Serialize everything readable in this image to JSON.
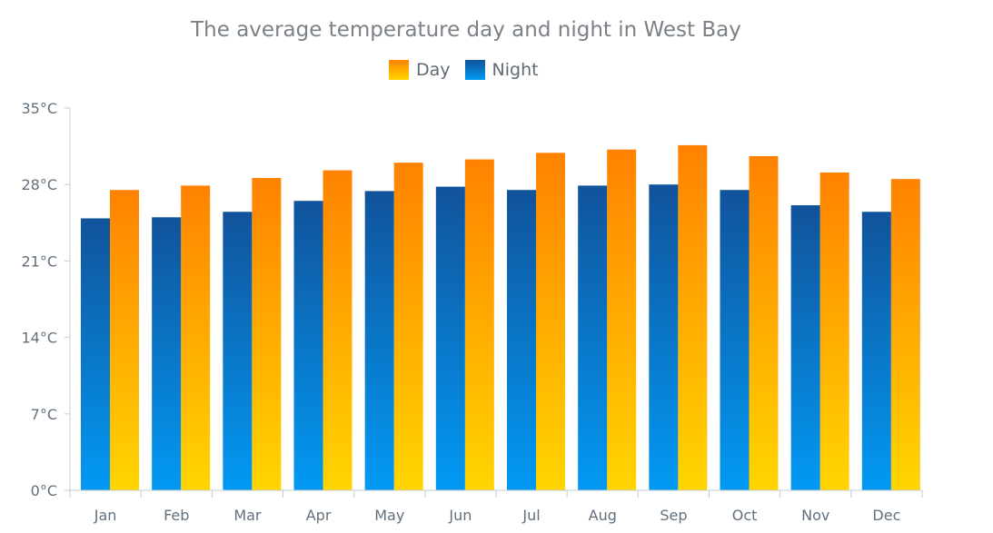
{
  "chart_data": {
    "type": "bar",
    "title": "The average temperature day and night in West Bay",
    "xlabel": "",
    "ylabel": "",
    "ylim": [
      0,
      35
    ],
    "y_ticks": [
      "0°C",
      "7°C",
      "14°C",
      "21°C",
      "28°C",
      "35°C"
    ],
    "y_tick_values": [
      0,
      7,
      14,
      21,
      28,
      35
    ],
    "categories": [
      "Jan",
      "Feb",
      "Mar",
      "Apr",
      "May",
      "Jun",
      "Jul",
      "Aug",
      "Sep",
      "Oct",
      "Nov",
      "Dec"
    ],
    "series": [
      {
        "name": "Night",
        "values": [
          24.9,
          25.0,
          25.5,
          26.5,
          27.4,
          27.8,
          27.5,
          27.9,
          28.0,
          27.5,
          26.1,
          25.5
        ]
      },
      {
        "name": "Day",
        "values": [
          27.5,
          27.9,
          28.6,
          29.3,
          30.0,
          30.3,
          30.9,
          31.2,
          31.6,
          30.6,
          29.1,
          28.5
        ]
      }
    ],
    "grid": false,
    "legend_position": "top-center",
    "colors": {
      "day_top": "#ff8200",
      "day_bottom": "#ffd500",
      "night_top": "#11539b",
      "night_bottom": "#0299f3",
      "axis": "#c7ccd1",
      "tick_text": "#62707d",
      "title_text": "#7b8187"
    }
  },
  "legend": {
    "day_label": "Day",
    "night_label": "Night"
  }
}
